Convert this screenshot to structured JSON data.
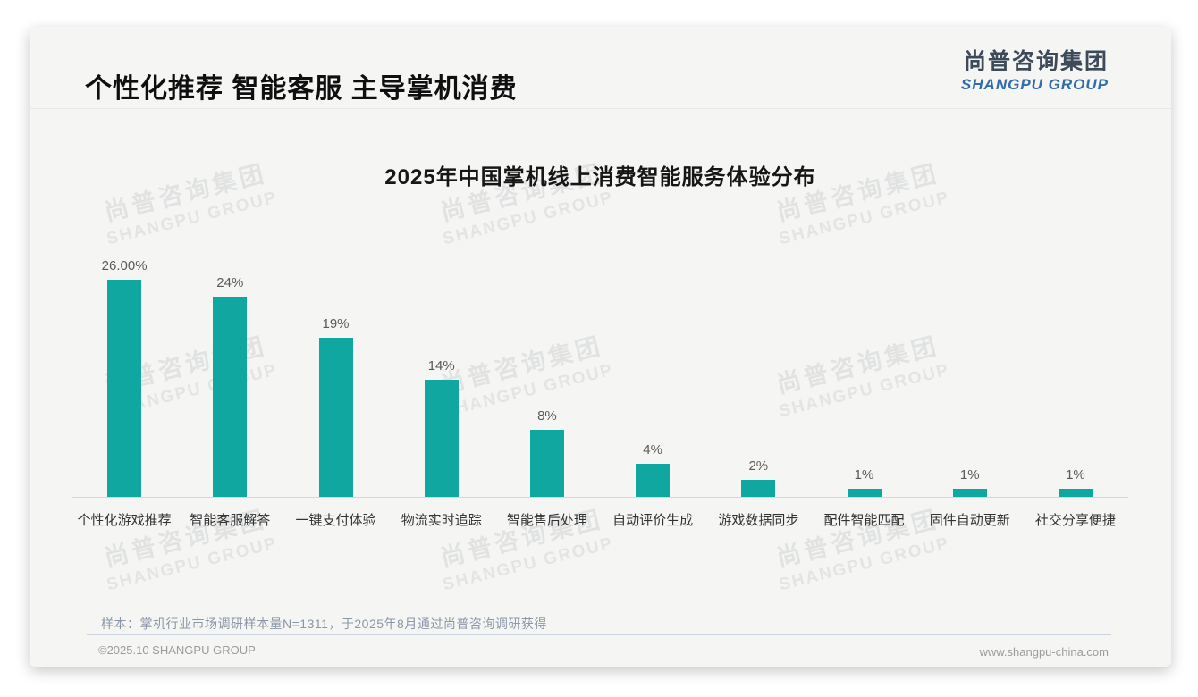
{
  "slide": {
    "title": "个性化推荐 智能客服 主导掌机消费",
    "logo": {
      "cn": "尚普咨询集团",
      "en": "SHANGPU GROUP"
    },
    "watermark": {
      "cn": "尚普咨询集团",
      "en": "SHANGPU GROUP"
    },
    "note": "样本：掌机行业市场调研样本量N=1311，于2025年8月通过尚普咨询调研获得",
    "footer": {
      "left": "©2025.10 SHANGPU GROUP",
      "right": "www.shangpu-china.com"
    }
  },
  "colors": {
    "bar": "#11a7a1",
    "logo_blue": "#2e6cab",
    "logo_dark": "#3d4a59",
    "value_label": "#595959",
    "note_gray_blue": "#8b96a6",
    "card_background": "#f5f5f4"
  },
  "chart_data": {
    "type": "bar",
    "title": "2025年中国掌机线上消费智能服务体验分布",
    "categories": [
      "个性化游戏推荐",
      "智能客服解答",
      "一键支付体验",
      "物流实时追踪",
      "智能售后处理",
      "自动评价生成",
      "游戏数据同步",
      "配件智能匹配",
      "固件自动更新",
      "社交分享便捷"
    ],
    "values": [
      26,
      24,
      19,
      14,
      8,
      4,
      2,
      1,
      1,
      1
    ],
    "value_labels": [
      "26.00%",
      "24%",
      "19%",
      "14%",
      "8%",
      "4%",
      "2%",
      "1%",
      "1%",
      "1%"
    ],
    "unit": "%",
    "ylim": [
      0,
      26
    ],
    "bar_color": "#11a7a1",
    "grid": false,
    "legend": "none",
    "value_labels_position": "above-bars"
  }
}
